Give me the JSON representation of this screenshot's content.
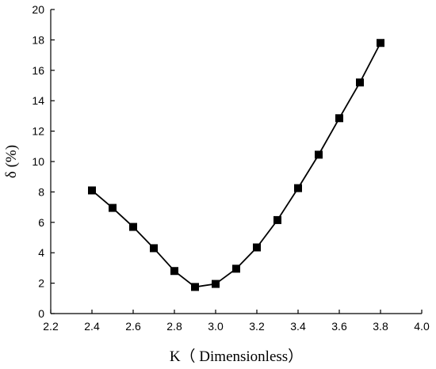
{
  "chart_data": {
    "type": "line",
    "title": "",
    "xlabel": "K（ Dimensionless）",
    "ylabel": "δ (%)",
    "xlim": [
      2.2,
      4.0
    ],
    "ylim": [
      0,
      20
    ],
    "xticks": [
      "2.2",
      "2.4",
      "2.6",
      "2.8",
      "3.0",
      "3.2",
      "3.4",
      "3.6",
      "3.8",
      "4.0"
    ],
    "yticks": [
      "0",
      "2",
      "4",
      "6",
      "8",
      "10",
      "12",
      "14",
      "16",
      "18",
      "20"
    ],
    "grid": false,
    "legend": "none",
    "series": [
      {
        "marker": "square",
        "color": "#000000",
        "x": [
          2.4,
          2.5,
          2.6,
          2.7,
          2.8,
          2.9,
          3.0,
          3.1,
          3.2,
          3.3,
          3.4,
          3.5,
          3.6,
          3.7,
          3.8
        ],
        "y": [
          8.1,
          6.95,
          5.7,
          4.3,
          2.8,
          1.75,
          1.95,
          2.95,
          4.35,
          6.15,
          8.25,
          10.45,
          12.85,
          15.2,
          17.8
        ]
      }
    ]
  }
}
